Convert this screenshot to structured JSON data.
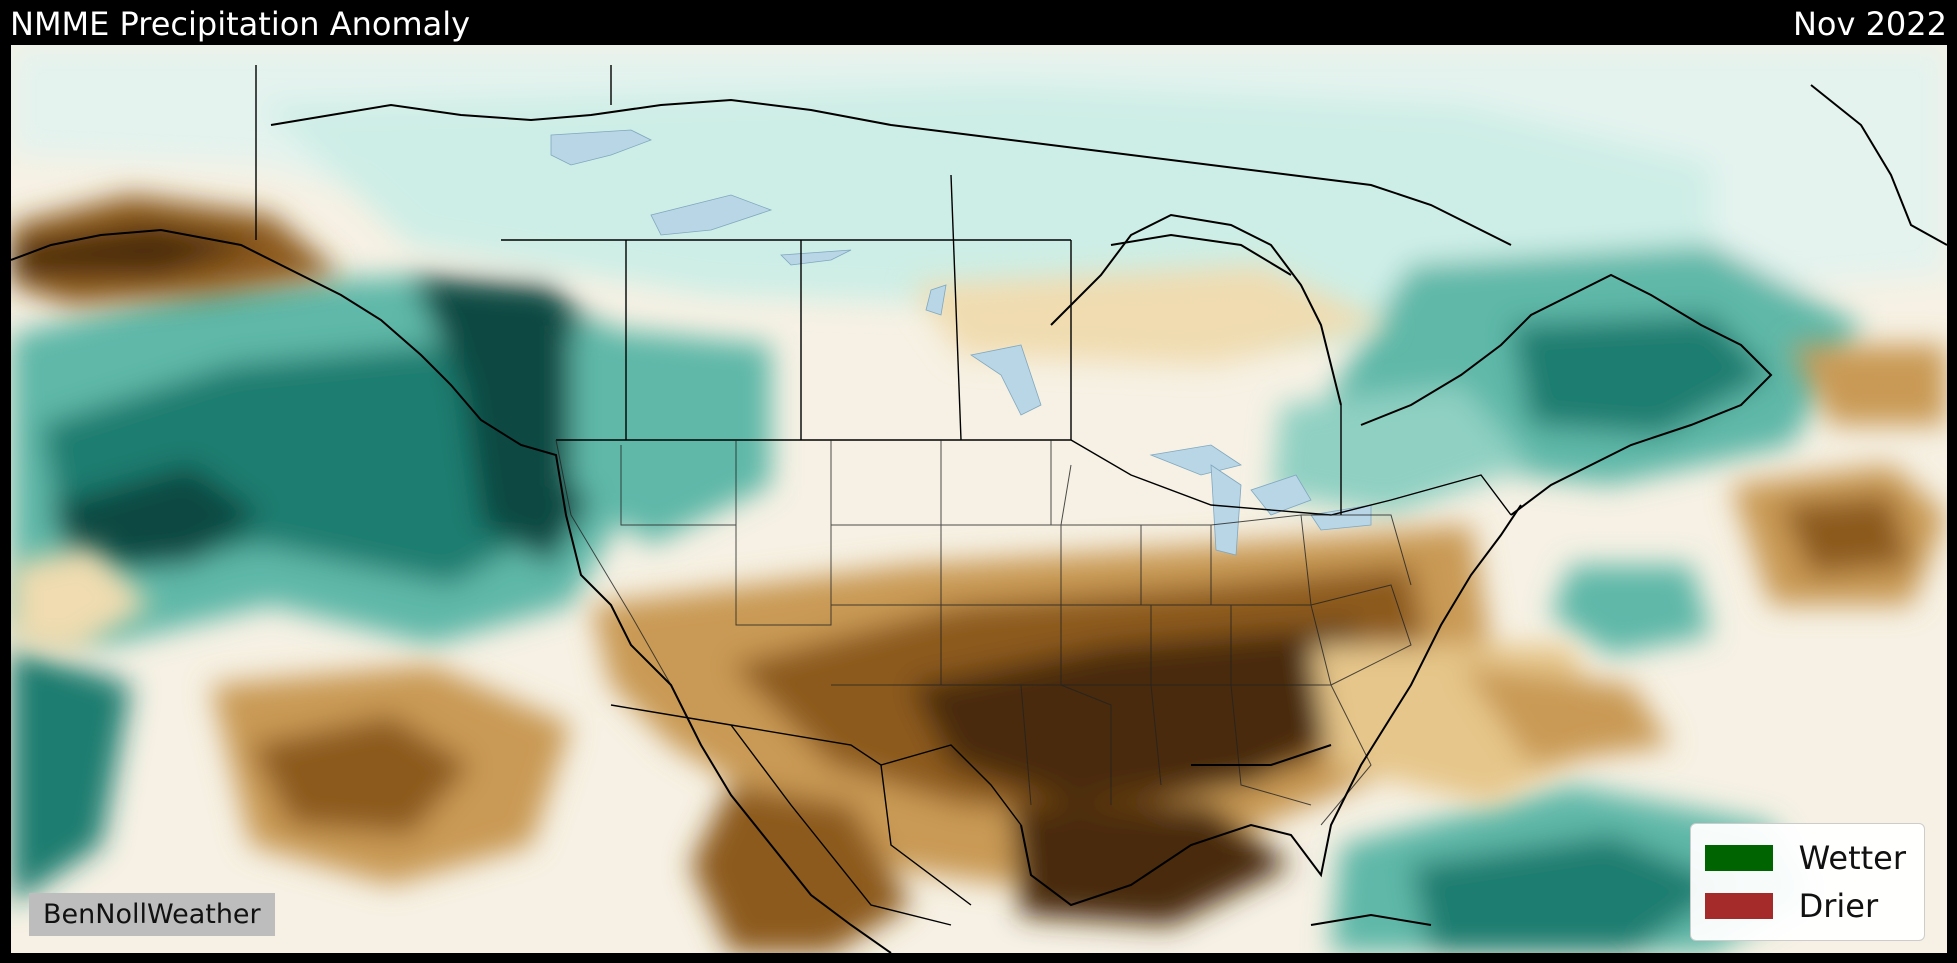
{
  "header": {
    "title": "NMME Precipitation Anomaly",
    "date": "Nov 2022"
  },
  "credit": "BenNollWeather",
  "legend": [
    {
      "label": "Wetter",
      "color": "#006400"
    },
    {
      "label": "Drier",
      "color": "#a52a2a"
    }
  ],
  "palette": {
    "ocean_neutral": "#f6f1e4",
    "dry_light": "#f0dcb0",
    "dry_mid": "#c99a55",
    "dry_dark": "#8c5a1e",
    "dry_darkest": "#4a2a08",
    "wet_light": "#cdeee6",
    "wet_mid": "#5fb8a8",
    "wet_dark": "#1f7d70",
    "wet_darkest": "#0b4a42",
    "borders": "#000000",
    "lakes": "#b9d6e6"
  }
}
